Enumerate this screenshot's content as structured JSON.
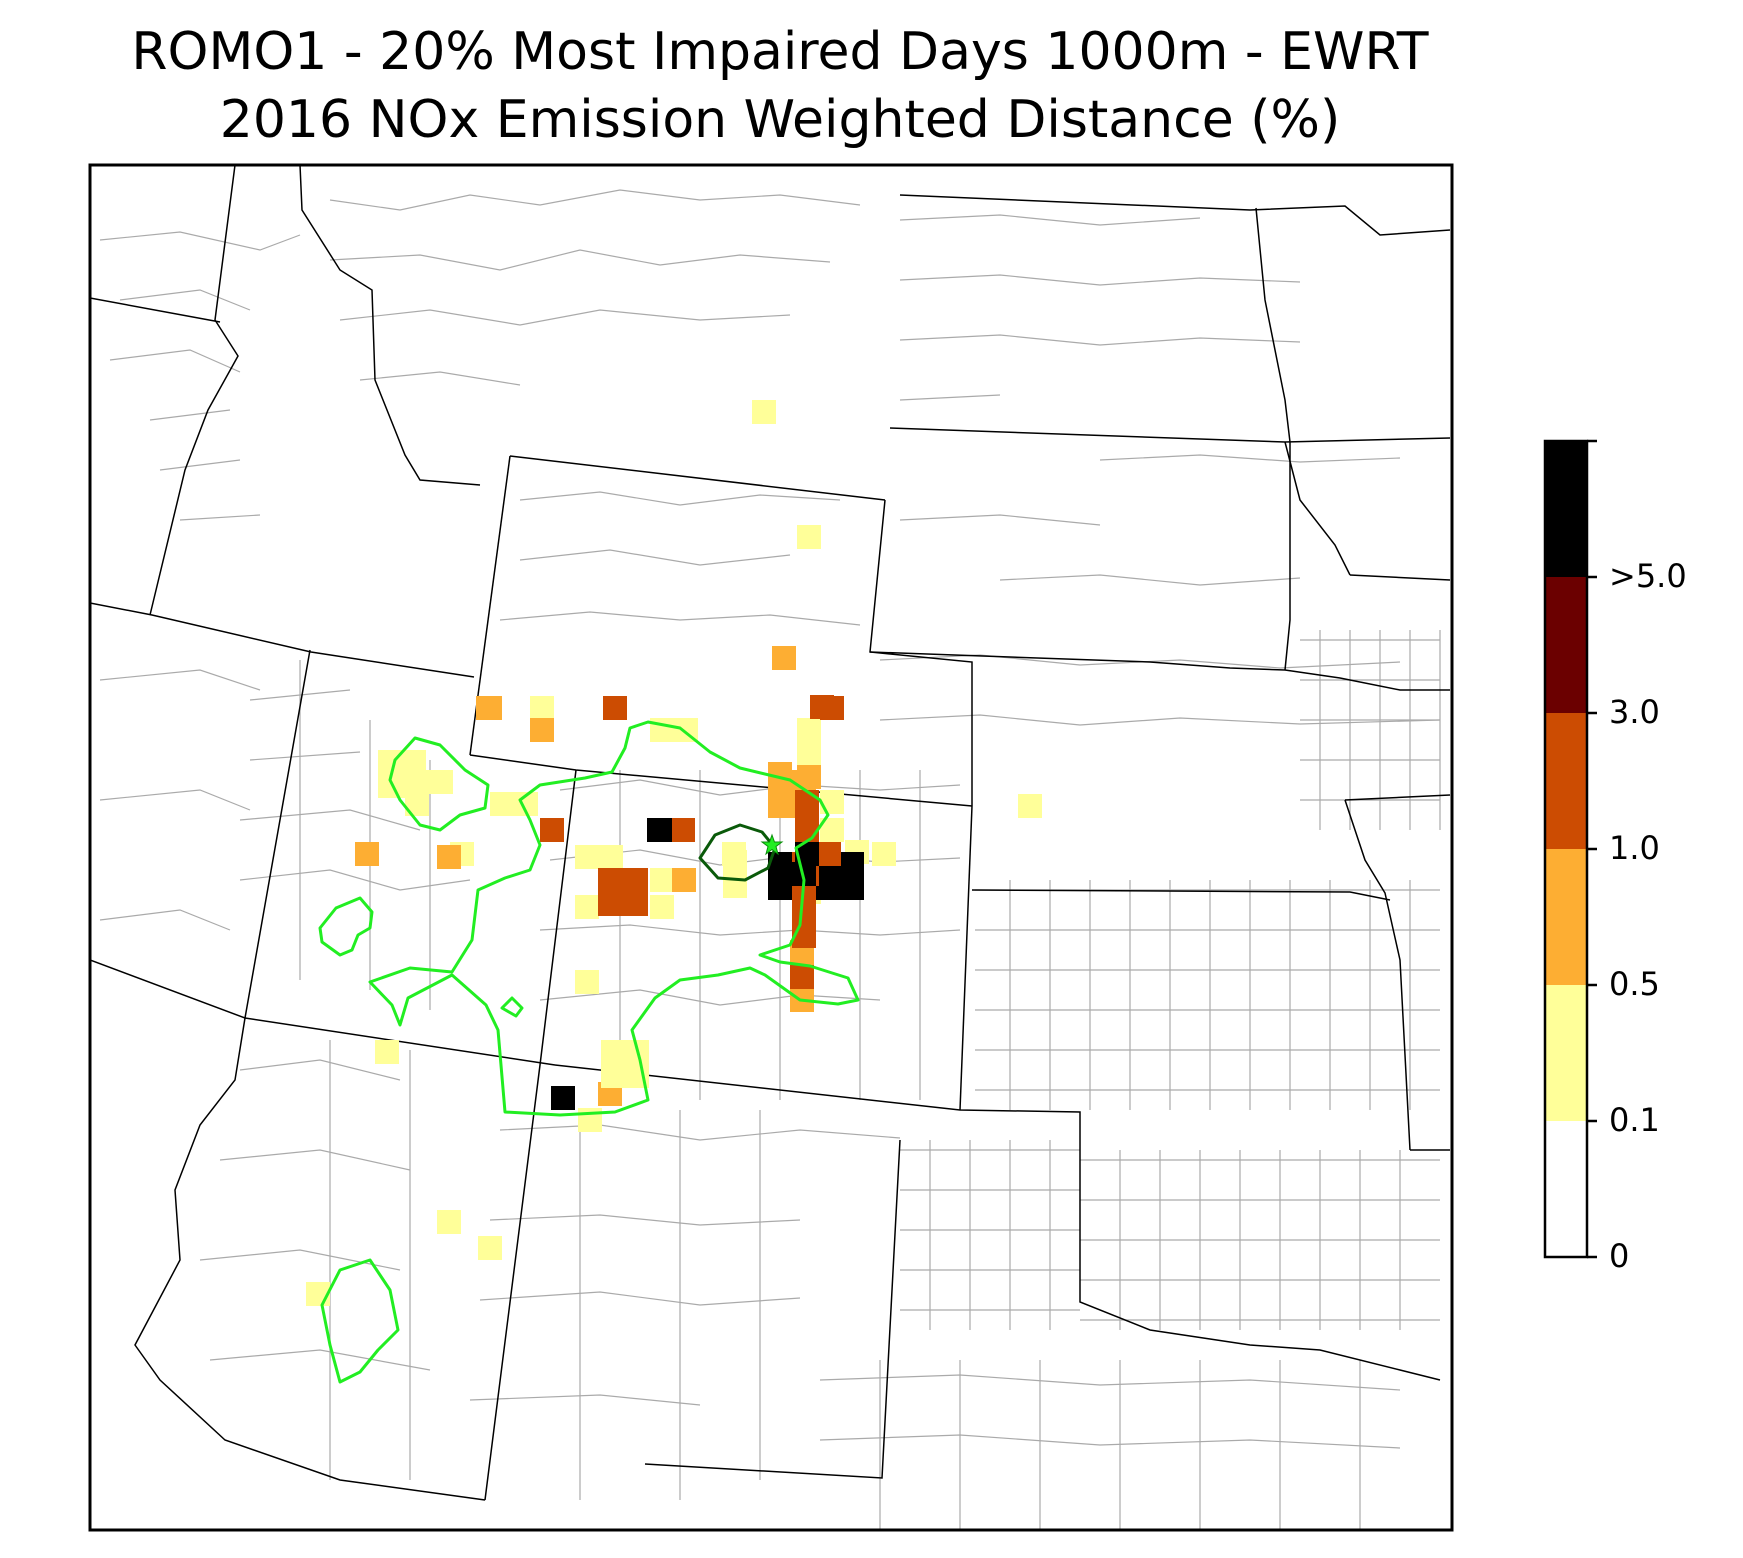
{
  "title": "ROMO1 - 20% Most Impaired Days 1000m - EWRT",
  "subtitle": "2016 NOx Emission Weighted Distance (%)",
  "colorbar": {
    "bins": [
      {
        "label": "0",
        "color": "#ffffff"
      },
      {
        "label": "0.1",
        "color": "#ffff99"
      },
      {
        "label": "0.5",
        "color": "#fdae33"
      },
      {
        "label": "1.0",
        "color": "#cc4c02"
      },
      {
        "label": "3.0",
        "color": "#6b0000"
      },
      {
        "label": ">5.0",
        "color": "#000000"
      }
    ],
    "tick_labels": [
      ">5.0",
      "3.0",
      "1.0",
      "0.5",
      "0.1",
      "0"
    ]
  },
  "colors": {
    "contour_light": "#22ee22",
    "contour_dark": "#0a5a0a",
    "state_border": "#000000",
    "county_border": "#aaaaaa",
    "site_marker": "#22ee22"
  },
  "map_data": {
    "region": "Central Rocky Mountains / Great Plains, USA",
    "site_marker_icon": "star-icon",
    "cells": [
      {
        "bin": 1,
        "area": "northeastern Wyoming"
      },
      {
        "bin": 1,
        "area": "eastern Wyoming"
      },
      {
        "bin": 2,
        "area": "southeastern Wyoming"
      },
      {
        "bin": 3,
        "area": "southern Wyoming"
      },
      {
        "bin": 3,
        "area": "southeastern Wyoming"
      },
      {
        "bin": 2,
        "area": "northern Utah"
      },
      {
        "bin": 1,
        "area": "northern Utah"
      },
      {
        "bin": 5,
        "area": "Colorado Front Range (Denver)"
      },
      {
        "bin": 5,
        "area": "northwestern Colorado"
      },
      {
        "bin": 3,
        "area": "northwestern Colorado"
      },
      {
        "bin": 3,
        "area": "western Colorado"
      },
      {
        "bin": 3,
        "area": "Colorado Front Range"
      },
      {
        "bin": 2,
        "area": "Colorado Front Range"
      },
      {
        "bin": 2,
        "area": "western Colorado"
      },
      {
        "bin": 1,
        "area": "eastern Colorado"
      },
      {
        "bin": 5,
        "area": "Four Corners (northwestern New Mexico)"
      },
      {
        "bin": 2,
        "area": "southwestern Colorado"
      },
      {
        "bin": 1,
        "area": "southwestern Colorado"
      },
      {
        "bin": 1,
        "area": "northeastern Arizona"
      },
      {
        "bin": 1,
        "area": "central Arizona"
      },
      {
        "bin": 1,
        "area": "northeastern Colorado"
      }
    ]
  }
}
